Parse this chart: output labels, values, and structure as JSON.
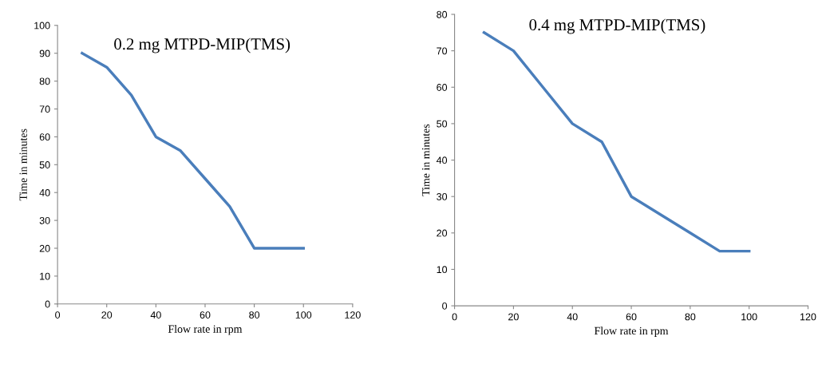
{
  "chart_data": [
    {
      "type": "line",
      "title": "0.2 mg MTPD-MIP(TMS)",
      "xlabel": "Flow rate in rpm",
      "ylabel": "Time in minutes",
      "x": [
        10,
        20,
        30,
        40,
        50,
        60,
        70,
        80,
        90,
        100
      ],
      "series": [
        {
          "color": "#4a7ebb",
          "values": [
            90,
            85,
            75,
            60,
            55,
            45,
            35,
            20,
            20,
            20
          ]
        }
      ],
      "xlim": [
        0,
        120
      ],
      "xticks": [
        0,
        20,
        40,
        60,
        80,
        100,
        120
      ],
      "ylim": [
        0,
        100
      ],
      "yticks": [
        0,
        10,
        20,
        30,
        40,
        50,
        60,
        70,
        80,
        90,
        100
      ],
      "grid": false,
      "legend": false,
      "marker": "none",
      "line_style": "solid"
    },
    {
      "type": "line",
      "title": "0.4 mg MTPD-MIP(TMS)",
      "xlabel": "Flow rate in rpm",
      "ylabel": "Time in minutes",
      "x": [
        10,
        20,
        30,
        40,
        50,
        60,
        70,
        80,
        90,
        100
      ],
      "series": [
        {
          "color": "#4a7ebb",
          "values": [
            75,
            70,
            60,
            50,
            45,
            30,
            25,
            20,
            15,
            15
          ]
        }
      ],
      "xlim": [
        0,
        120
      ],
      "xticks": [
        0,
        20,
        40,
        60,
        80,
        100,
        120
      ],
      "ylim": [
        0,
        80
      ],
      "yticks": [
        0,
        10,
        20,
        30,
        40,
        50,
        60,
        70,
        80
      ],
      "grid": false,
      "legend": false,
      "marker": "none",
      "line_style": "solid"
    }
  ]
}
